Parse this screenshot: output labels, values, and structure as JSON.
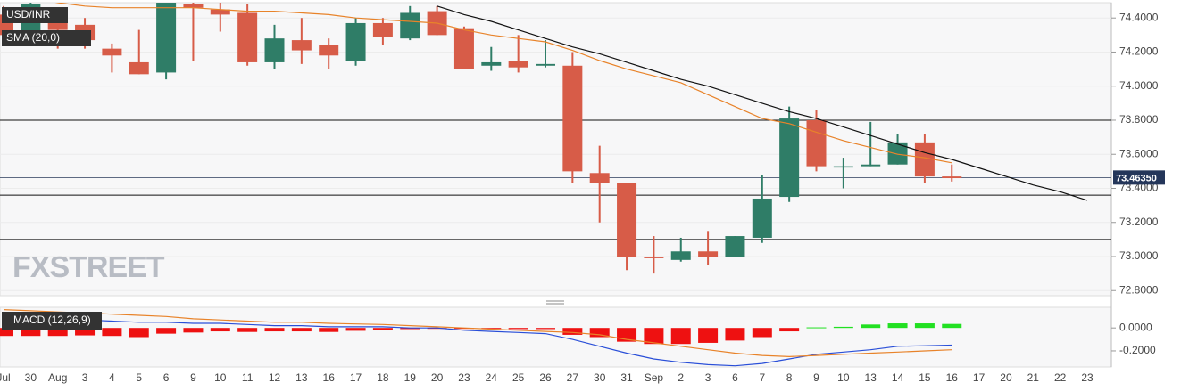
{
  "chart_data": [
    {
      "type": "candlestick",
      "name": "USD/INR",
      "categories": [
        "Jul",
        "30",
        "Aug",
        "3",
        "4",
        "5",
        "6",
        "9",
        "10",
        "11",
        "12",
        "13",
        "16",
        "17",
        "18",
        "19",
        "20",
        "23",
        "24",
        "25",
        "26",
        "27",
        "30",
        "31",
        "Sep",
        "2",
        "3",
        "6",
        "7",
        "8",
        "9",
        "10",
        "13",
        "14",
        "15",
        "16",
        "17",
        "20",
        "21",
        "22",
        "23"
      ],
      "open": [
        74.42,
        74.3,
        74.4,
        74.36,
        74.22,
        74.14,
        74.08,
        74.48,
        74.45,
        74.43,
        74.14,
        74.27,
        74.24,
        74.15,
        74.37,
        74.28,
        74.44,
        74.34,
        74.12,
        74.15,
        74.12,
        74.12,
        73.49,
        73.43,
        73.0,
        72.98,
        73.03,
        73.0,
        73.11,
        73.35,
        73.8,
        73.53,
        73.53,
        73.54,
        73.67,
        73.47,
        null,
        null,
        null,
        null,
        null
      ],
      "high": [
        74.47,
        74.5,
        74.44,
        74.4,
        74.25,
        74.33,
        74.6,
        74.5,
        74.5,
        74.48,
        74.36,
        74.4,
        74.28,
        74.4,
        74.4,
        74.47,
        74.47,
        74.35,
        74.23,
        74.3,
        74.27,
        74.2,
        73.65,
        73.43,
        73.12,
        73.11,
        73.15,
        73.12,
        73.48,
        73.88,
        73.86,
        73.58,
        73.79,
        73.72,
        73.72,
        73.54,
        null,
        null,
        null,
        null,
        null
      ],
      "low": [
        74.24,
        74.28,
        74.22,
        74.22,
        74.08,
        74.07,
        74.04,
        74.15,
        74.32,
        74.12,
        74.1,
        74.13,
        74.1,
        74.12,
        74.24,
        74.27,
        74.3,
        74.1,
        74.09,
        74.08,
        74.11,
        73.43,
        73.2,
        72.92,
        72.9,
        72.97,
        72.95,
        73.0,
        73.08,
        73.32,
        73.5,
        73.4,
        73.53,
        73.54,
        73.43,
        73.44,
        null,
        null,
        null,
        null,
        null
      ],
      "close": [
        74.3,
        74.48,
        74.33,
        74.27,
        74.18,
        74.07,
        74.55,
        74.46,
        74.42,
        74.14,
        74.28,
        74.21,
        74.18,
        74.37,
        74.29,
        74.43,
        74.3,
        74.1,
        74.14,
        74.11,
        74.13,
        73.5,
        73.43,
        73.0,
        72.99,
        73.03,
        73.0,
        73.12,
        73.34,
        73.81,
        73.53,
        73.53,
        73.54,
        73.67,
        73.47,
        73.46,
        null,
        null,
        null,
        null,
        null
      ],
      "up_color": "#2f7d67",
      "down_color": "#d75c48",
      "series": [
        {
          "name": "SMA (20,0)",
          "color": "#e8832a",
          "values": [
            74.56,
            74.52,
            74.49,
            74.47,
            74.46,
            74.46,
            74.46,
            74.46,
            74.45,
            74.44,
            74.44,
            74.43,
            74.42,
            74.4,
            74.39,
            74.38,
            74.37,
            74.33,
            74.3,
            74.28,
            74.26,
            74.21,
            74.15,
            74.1,
            74.06,
            74.02,
            73.95,
            73.88,
            73.81,
            73.78,
            73.73,
            73.68,
            73.64,
            73.6,
            73.58,
            73.55,
            null,
            null,
            null,
            null,
            null
          ]
        }
      ],
      "trend_line": {
        "color": "#111111",
        "values": [
          null,
          null,
          null,
          null,
          null,
          null,
          null,
          null,
          null,
          null,
          null,
          null,
          null,
          null,
          null,
          null,
          74.47,
          74.42,
          74.38,
          74.33,
          74.28,
          74.23,
          74.19,
          74.14,
          74.09,
          74.04,
          74.0,
          73.95,
          73.9,
          73.85,
          73.81,
          73.76,
          73.71,
          73.66,
          73.61,
          73.57,
          73.52,
          73.47,
          73.42,
          73.38,
          73.33
        ]
      },
      "levels": [
        73.8,
        73.36,
        73.1
      ],
      "last_price": {
        "value": 73.4635,
        "label": "73.46350"
      },
      "ylim": [
        72.77,
        74.49
      ],
      "yticks": [
        {
          "value": 72.8,
          "label": "72.8000"
        },
        {
          "value": 73.0,
          "label": "73.0000"
        },
        {
          "value": 73.2,
          "label": "73.2000"
        },
        {
          "value": 73.4,
          "label": "73.4000"
        },
        {
          "value": 73.6,
          "label": "73.6000"
        },
        {
          "value": 73.8,
          "label": "73.8000"
        },
        {
          "value": 74.0,
          "label": "74.0000"
        },
        {
          "value": 74.2,
          "label": "74.2000"
        },
        {
          "value": 74.4,
          "label": "74.4000"
        }
      ],
      "grid": true,
      "watermark": "FXSTREET"
    },
    {
      "type": "macd",
      "name": "MACD (12,26,9)",
      "histogram": [
        -0.07,
        -0.07,
        -0.07,
        -0.065,
        -0.07,
        -0.08,
        -0.05,
        -0.04,
        -0.03,
        -0.035,
        -0.03,
        -0.03,
        -0.035,
        -0.025,
        -0.02,
        -0.01,
        -0.005,
        -0.005,
        -0.005,
        -0.01,
        -0.01,
        -0.06,
        -0.08,
        -0.12,
        -0.14,
        -0.14,
        -0.13,
        -0.11,
        -0.08,
        -0.03,
        0.005,
        0.01,
        0.03,
        0.04,
        0.04,
        0.035,
        null,
        null,
        null,
        null,
        null
      ],
      "positive_color": "#22e022",
      "negative_color": "#ee1111",
      "series": [
        {
          "color": "#2a4fd8",
          "values": [
            0.09,
            0.08,
            0.08,
            0.07,
            0.06,
            0.05,
            0.05,
            0.04,
            0.04,
            0.03,
            0.02,
            0.02,
            0.01,
            0.01,
            0.01,
            0.0,
            0.0,
            -0.02,
            -0.03,
            -0.04,
            -0.05,
            -0.1,
            -0.16,
            -0.22,
            -0.27,
            -0.3,
            -0.32,
            -0.33,
            -0.31,
            -0.27,
            -0.23,
            -0.21,
            -0.19,
            -0.16,
            -0.155,
            -0.15,
            null,
            null,
            null,
            null,
            null
          ]
        },
        {
          "color": "#e8832a",
          "values": [
            0.16,
            0.15,
            0.14,
            0.13,
            0.12,
            0.11,
            0.1,
            0.08,
            0.07,
            0.06,
            0.05,
            0.05,
            0.04,
            0.035,
            0.03,
            0.02,
            0.01,
            0.0,
            -0.01,
            -0.02,
            -0.03,
            -0.04,
            -0.06,
            -0.1,
            -0.13,
            -0.16,
            -0.19,
            -0.22,
            -0.24,
            -0.25,
            -0.24,
            -0.23,
            -0.22,
            -0.21,
            -0.2,
            -0.19,
            null,
            null,
            null,
            null,
            null
          ]
        }
      ],
      "ylim": [
        -0.34,
        0.18
      ],
      "yticks": [
        {
          "value": 0,
          "label": "0.0000"
        },
        {
          "value": -0.2,
          "label": "-0.2000"
        }
      ]
    }
  ]
}
